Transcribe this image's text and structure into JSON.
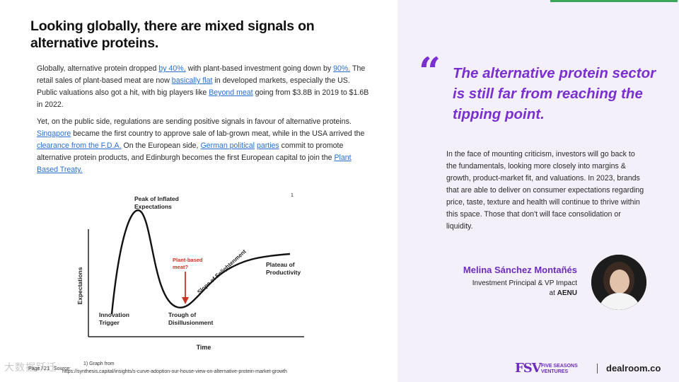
{
  "title": "Looking globally, there are mixed signals on alternative proteins.",
  "paragraph1": {
    "t1": "Globally, alternative protein dropped ",
    "l1": "by 40%,",
    "t2": " with plant-based investment going down by ",
    "l2": "90%.",
    "t3": " The retail sales of plant-based meat are now ",
    "l3": "basically flat",
    "t4": " in developed markets, especially the US. Public valuations also got a hit, with big players like ",
    "l4": "Beyond meat",
    "t5": " going from $3.8B in 2019 to $1.6B in 2022."
  },
  "paragraph2": {
    "t1": "Yet, on the public side, regulations are sending positive signals in favour of alternative proteins. ",
    "l1": "Singapore",
    "t2": " became the first country to approve sale of lab-grown meat, while in the USA arrived the ",
    "l2": "clearance from the F.D.A.",
    "t3": " On the European side, ",
    "l3": "German political",
    "t4": " ",
    "l4": "parties",
    "t5": " commit to promote alternative protein products, and Edinburgh becomes the first European capital to join the ",
    "l5": "Plant Based Treaty."
  },
  "diagram": {
    "peak_label_1": "Peak of Inflated",
    "peak_label_2": "Expectations",
    "plant_label_1": "Plant-based",
    "plant_label_2": "meat?",
    "slope_label": "Slope of Enlightenment",
    "plateau_label_1": "Plateau of",
    "plateau_label_2": "Productivity",
    "trigger_label_1": "Innovation",
    "trigger_label_2": "Trigger",
    "trough_label_1": "Trough of",
    "trough_label_2": "Disillusionment",
    "y_axis": "Expectations",
    "x_axis": "Time",
    "footnote_marker": "1",
    "colors": {
      "curve": "#111111",
      "highlight": "#cc3322"
    }
  },
  "footer": {
    "page": "Page / 21",
    "source_label": "Source:",
    "caption_line1": "1) Graph from",
    "caption_line2": "https://synthesis.capital/insights/s-curve-adoption-our-house-view-on-alternative-protein-market-growth",
    "watermark": "大数据跃迁"
  },
  "quote": {
    "mark": "“",
    "text": "The alternative protein sector is still far from reaching the tipping point.",
    "body": "In the face of mounting criticism, investors will go back to the fundamentals, looking more closely into margins & growth, product-market fit, and valuations. In 2023, brands that are able to deliver on consumer expectations regarding price, taste, texture and health will continue to thrive within this space. Those that don't will face consolidation or liquidity."
  },
  "person": {
    "name": "Melina Sánchez Montañés",
    "role_line1": "Investment Principal & VP Impact",
    "role_line2_prefix": "at ",
    "company": "AENU"
  },
  "logos": {
    "fsv_mark": "FSV",
    "fsv_line1": "FIVE SEASONS",
    "fsv_line2": "VENTURES",
    "dealroom": "dealroom.co"
  },
  "colors": {
    "accent_purple": "#7a2fd0",
    "right_panel_bg": "#f3f0f9",
    "top_accent": "#3aa75a",
    "link": "#2a6fd0"
  }
}
